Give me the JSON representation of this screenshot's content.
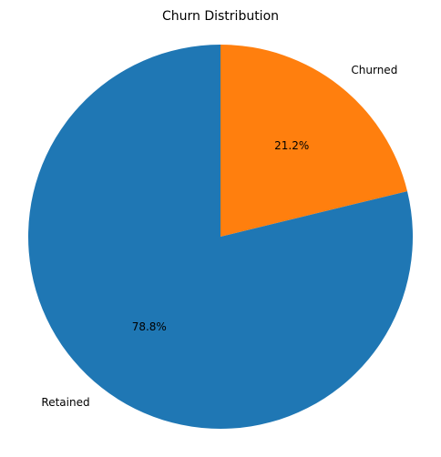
{
  "chart_data": {
    "type": "pie",
    "title": "Churn Distribution",
    "slices": [
      {
        "label": "Churned",
        "value": 21.2,
        "pct_label": "21.2%",
        "color": "#ff7f0e"
      },
      {
        "label": "Retained",
        "value": 78.8,
        "pct_label": "78.8%",
        "color": "#1f77b4"
      }
    ],
    "start_angle_deg": 90,
    "direction": "clockwise",
    "legend": "none"
  }
}
